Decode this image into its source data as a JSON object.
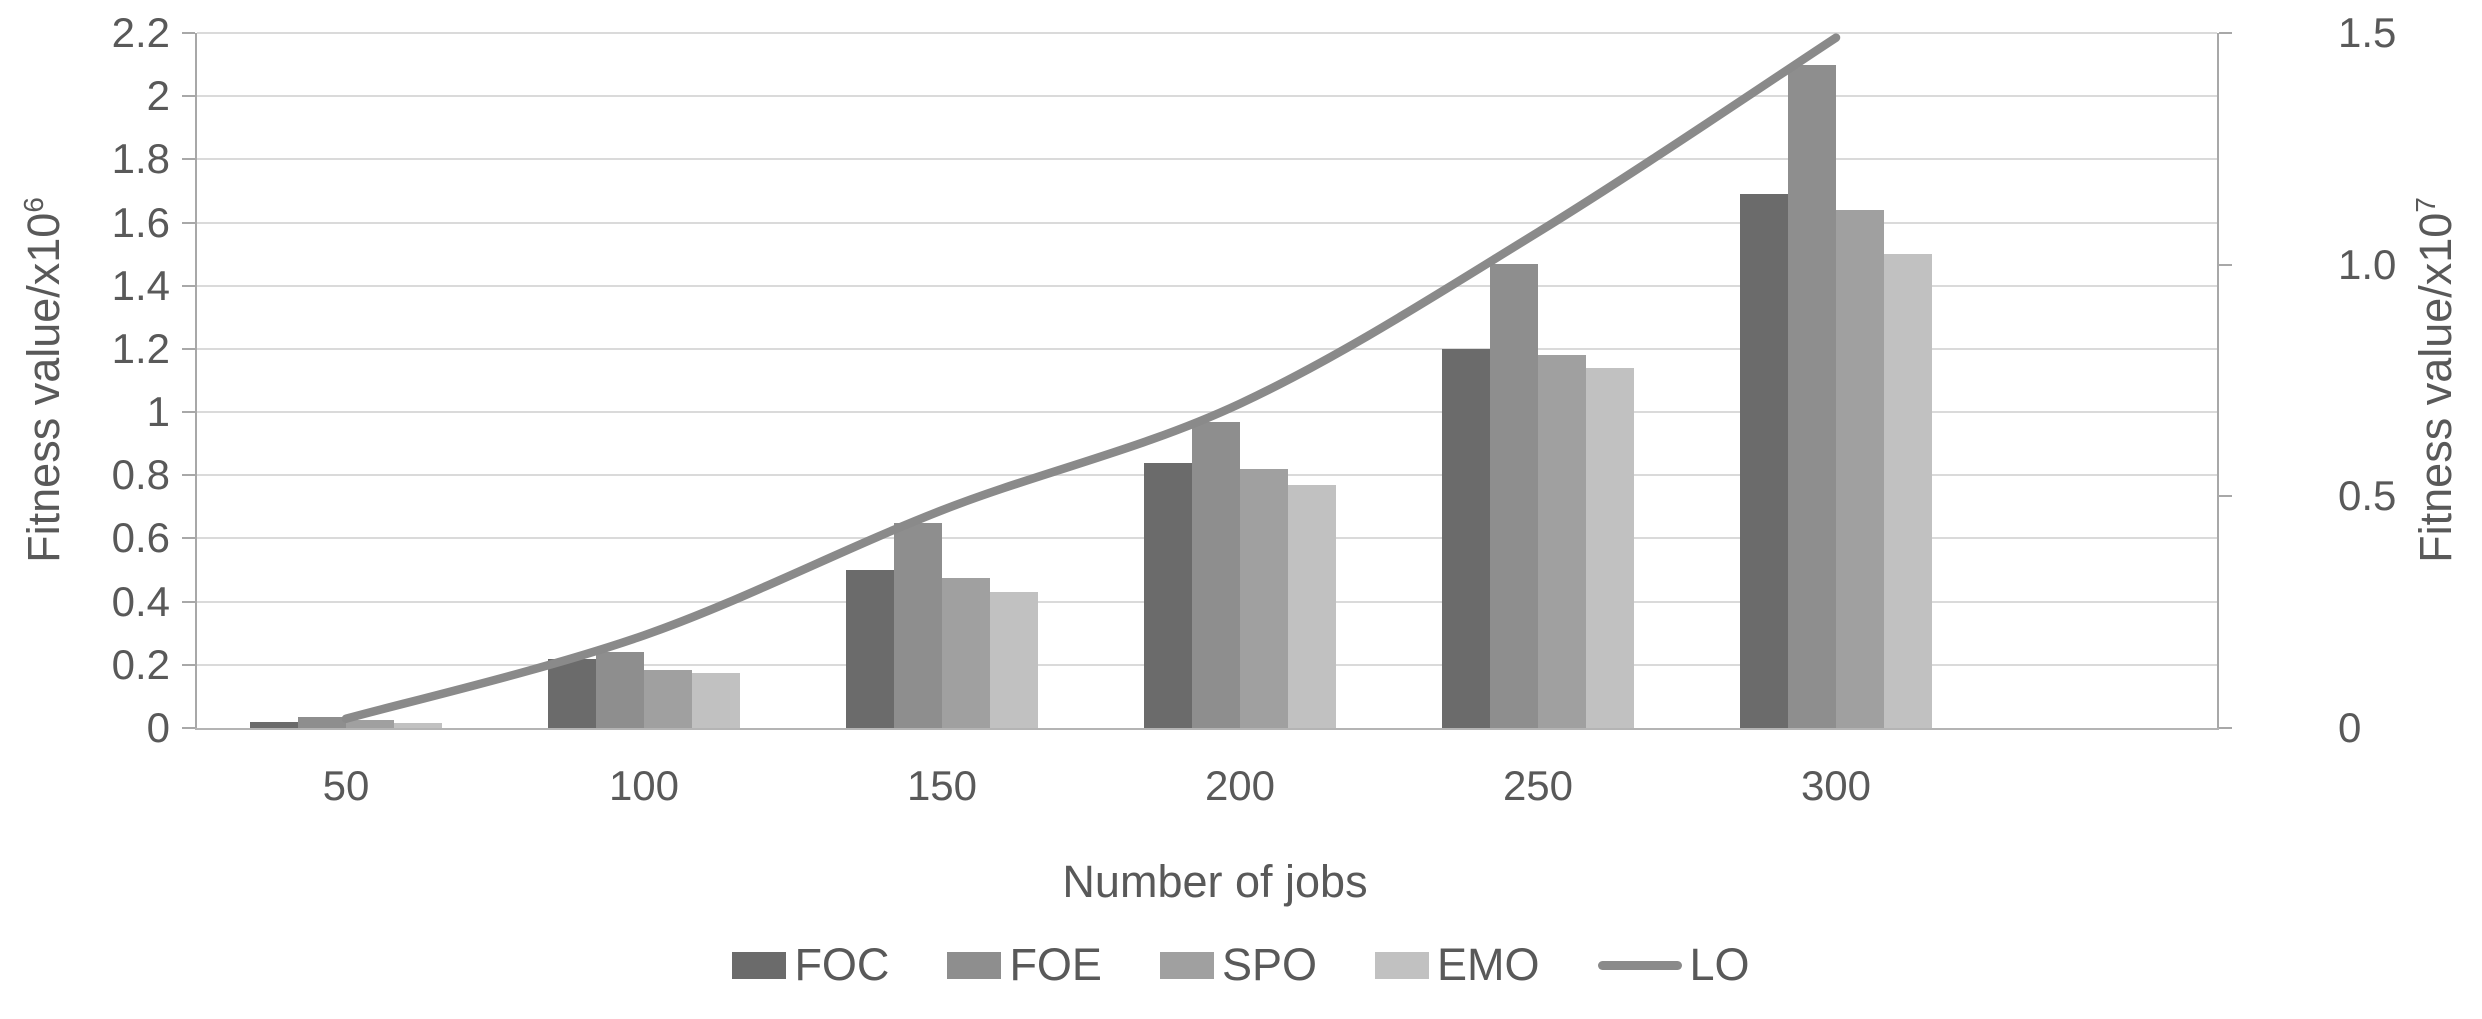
{
  "chart_data": {
    "type": "bar",
    "subtype": "grouped-bars-with-line-combo",
    "categories": [
      "50",
      "100",
      "150",
      "200",
      "250",
      "300"
    ],
    "series": [
      {
        "name": "FOC",
        "type": "bar",
        "axis": "left",
        "color": "#6b6b6b",
        "values": [
          0.02,
          0.22,
          0.5,
          0.84,
          1.2,
          1.69
        ]
      },
      {
        "name": "FOE",
        "type": "bar",
        "axis": "left",
        "color": "#8e8e8e",
        "values": [
          0.035,
          0.24,
          0.65,
          0.97,
          1.47,
          2.1
        ]
      },
      {
        "name": "SPO",
        "type": "bar",
        "axis": "left",
        "color": "#a0a0a0",
        "values": [
          0.025,
          0.185,
          0.475,
          0.82,
          1.18,
          1.64
        ]
      },
      {
        "name": "EMO",
        "type": "bar",
        "axis": "left",
        "color": "#c1c1c1",
        "values": [
          0.015,
          0.175,
          0.43,
          0.77,
          1.14,
          1.5
        ]
      },
      {
        "name": "LO",
        "type": "line",
        "axis": "right",
        "color": "#8a8a8a",
        "values": [
          0.02,
          0.2,
          0.47,
          0.7,
          1.07,
          1.49
        ]
      }
    ],
    "left_axis": {
      "title_base": "Fitness value/x10",
      "title_sup": "6",
      "min": 0,
      "max": 2.2,
      "step": 0.2,
      "tick_labels": [
        "0",
        "0.2",
        "0.4",
        "0.6",
        "0.8",
        "1",
        "1.2",
        "1.4",
        "1.6",
        "1.8",
        "2",
        "2.2"
      ]
    },
    "right_axis": {
      "title_base": "Fitness value/x10",
      "title_sup": "7",
      "min": 0,
      "max": 1.5,
      "step": 0.5,
      "tick_labels": [
        "0",
        "0.5",
        "1.0",
        "1.5"
      ]
    },
    "x_axis": {
      "title": "Number of jobs"
    },
    "legend": {
      "entries": [
        "FOC",
        "FOE",
        "SPO",
        "EMO",
        "LO"
      ],
      "position": "bottom"
    },
    "grid": true,
    "plot_note": "x-axis extends one empty slot beyond the 300 group"
  },
  "colors": {
    "background": "#ffffff",
    "text": "#595959",
    "gridline": "#dadada",
    "axis": "#a8a8a8",
    "line_series": "#8a8a8a"
  }
}
